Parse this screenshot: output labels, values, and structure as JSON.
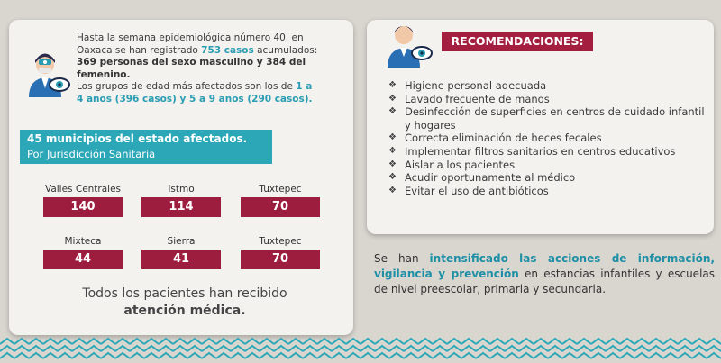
{
  "left": {
    "intro_l1": "Hasta la semana epidemiológica número 40, en",
    "intro_l2a": "Oaxaca se han registrado ",
    "intro_l2b": "753 casos",
    "intro_l2c": " acumulados:",
    "intro_l3": "369 personas del sexo masculino y 384 del",
    "intro_l4": "femenino.",
    "intro_l5a": "Los grupos de edad más afectados son los de ",
    "intro_l5b": "1 a",
    "intro_l6": "4 años (396 casos) y 5 a 9 años (290 casos).",
    "banner_title": "45 municipios del estado afectados.",
    "banner_sub": "Por Jurisdicción Sanitaria",
    "regions": [
      {
        "label": "Valles Centrales",
        "value": "140"
      },
      {
        "label": "Istmo",
        "value": "114"
      },
      {
        "label": "Tuxtepec",
        "value": "70"
      },
      {
        "label": "Mixteca",
        "value": "44"
      },
      {
        "label": "Sierra",
        "value": "41"
      },
      {
        "label": "Tuxtepec",
        "value": "70"
      }
    ],
    "footer_1": "Todos los pacientes han recibido",
    "footer_2": "atención médica."
  },
  "right": {
    "title": "RECOMENDACIONES:",
    "items": [
      "Higiene personal adecuada",
      "Lavado frecuente de manos",
      "Desinfección de superficies en centros de cuidado infantil y hogares",
      "Correcta eliminación de heces fecales",
      "Implementar filtros sanitarios en centros educativos",
      "Aislar a los pacientes",
      "Acudir oportunamente al médico",
      "Evitar el uso de antibióticos"
    ]
  },
  "action": {
    "a": "Se han ",
    "b": "intensificado las acciones de información, vigilancia y prevención",
    "c": " en estancias infantiles y escuelas de nivel preescolar, primaria y secundaria."
  },
  "colors": {
    "teal": "#2ba7b8",
    "maroon": "#9c1d3e",
    "rec_title_bg": "#a41f3f"
  },
  "icons": {
    "left": "doctor-eye-icon",
    "right": "doctor-eye-icon",
    "bullet": "diamond-bullet-icon"
  }
}
